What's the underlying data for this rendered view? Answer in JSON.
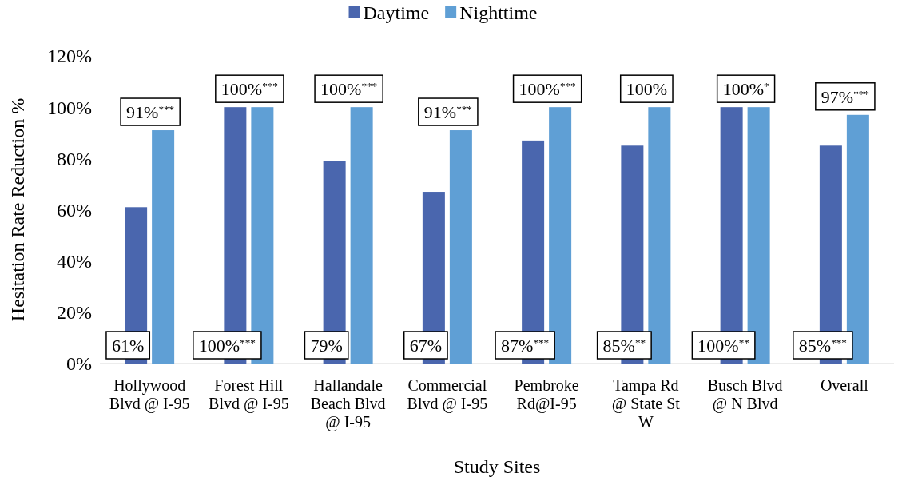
{
  "chart_data": {
    "type": "bar",
    "xlabel": "Study Sites",
    "ylabel": "Hesitation Rate Reduction %",
    "categories": [
      "Hollywood Blvd @ I-95",
      "Forest Hill Blvd @ I-95",
      "Hallandale Beach Blvd @ I-95",
      "Commercial Blvd @ I-95",
      "Pembroke Rd@I-95",
      "Tampa Rd @ State St W",
      "Busch Blvd @ N Blvd",
      "Overall"
    ],
    "series": [
      {
        "name": "Daytime",
        "color": "#4a66ae",
        "values": [
          61,
          100,
          79,
          67,
          87,
          85,
          100,
          85
        ],
        "value_labels": [
          "61%",
          "100%$^{***}$",
          "79%",
          "67%",
          "87%$^{***}$",
          "85%$^{**}$",
          "100%$^{**}$",
          "85%$^{***}$"
        ]
      },
      {
        "name": "Nighttime",
        "color": "#5f9fd5",
        "values": [
          91,
          100,
          100,
          91,
          100,
          100,
          100,
          97
        ],
        "value_labels": [
          "91%$^{***}$",
          "100%$^{***}$",
          "100%$^{***}$",
          "91%$^{***}$",
          "100%$^{***}$",
          "100%",
          "100%$^{*}$",
          "97%$^{***}$"
        ]
      }
    ],
    "ylim": [
      0,
      120
    ],
    "yticks": [
      {
        "value": 0,
        "label": "0%"
      },
      {
        "value": 20,
        "label": "20%"
      },
      {
        "value": 40,
        "label": "40%"
      },
      {
        "value": 60,
        "label": "60%"
      },
      {
        "value": 80,
        "label": "80%"
      },
      {
        "value": 100,
        "label": "100%"
      },
      {
        "value": 120,
        "label": "120%"
      }
    ],
    "grid": false,
    "legend": "top"
  }
}
